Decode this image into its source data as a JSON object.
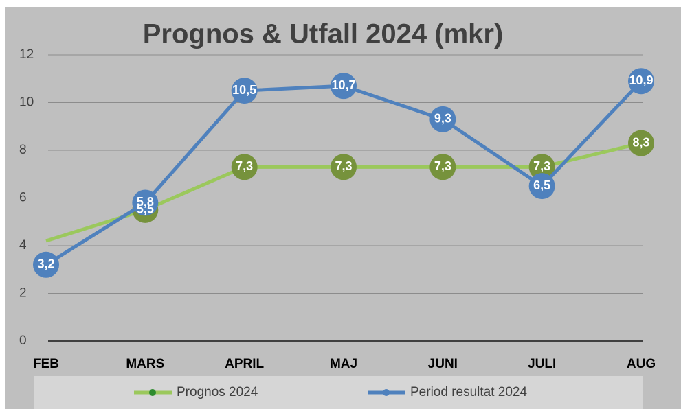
{
  "chart_data": {
    "type": "line",
    "title": "Prognos & Utfall 2024 (mkr)",
    "categories": [
      "FEB",
      "MARS",
      "APRIL",
      "MAJ",
      "JUNI",
      "JULI",
      "AUG"
    ],
    "series": [
      {
        "name": "Prognos 2024",
        "color": "#9bc85c",
        "marker_color": "#76923c",
        "values": [
          4.2,
          5.5,
          7.3,
          7.3,
          7.3,
          7.3,
          8.3
        ],
        "value_labels": [
          null,
          "5,5",
          "7,3",
          "7,3",
          "7,3",
          "7,3",
          "8,3"
        ]
      },
      {
        "name": "Period resultat 2024",
        "color": "#4f81bd",
        "marker_color": "#4f81bd",
        "values": [
          3.2,
          5.8,
          10.5,
          10.7,
          9.3,
          6.5,
          10.9
        ],
        "value_labels": [
          "3,2",
          "5,8",
          "10,5",
          "10,7",
          "9,3",
          "6,5",
          "10,9"
        ]
      }
    ],
    "ylim": [
      0,
      12
    ],
    "yticks": [
      0,
      2,
      4,
      6,
      8,
      10,
      12
    ],
    "grid": true,
    "legend": "bottom"
  }
}
